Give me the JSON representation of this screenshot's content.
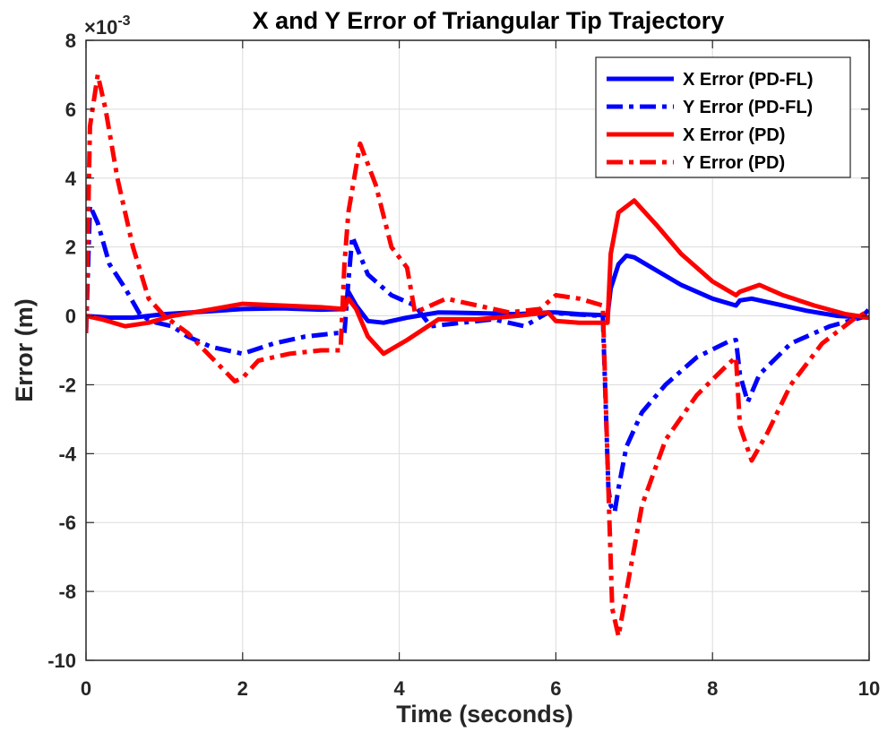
{
  "chart_data": {
    "type": "line",
    "title": "X and Y Error of Triangular Tip Trajectory",
    "xlabel": "Time (seconds)",
    "ylabel": "Error (m)",
    "y_multiplier": "×10",
    "y_exponent": "-3",
    "xlim": [
      0,
      10
    ],
    "ylim": [
      -10,
      8
    ],
    "xticks": [
      "0",
      "2",
      "4",
      "6",
      "8",
      "10"
    ],
    "yticks": [
      "-10",
      "-8",
      "-6",
      "-4",
      "-2",
      "0",
      "2",
      "4",
      "6",
      "8"
    ],
    "grid": true,
    "legend_position": "top-right",
    "series": [
      {
        "name": "X Error (PD-FL)",
        "color": "#0000ff",
        "style": "solid",
        "x": [
          0,
          0.3,
          0.6,
          1.0,
          1.5,
          2.0,
          2.5,
          3.0,
          3.3,
          3.35,
          3.45,
          3.6,
          3.8,
          4.1,
          4.5,
          5.0,
          5.5,
          5.9,
          6.0,
          6.3,
          6.6,
          6.66,
          6.7,
          6.8,
          6.9,
          7.0,
          7.3,
          7.6,
          8.0,
          8.3,
          8.35,
          8.5,
          8.8,
          9.2,
          9.6,
          10.0
        ],
        "y": [
          0.0,
          -0.05,
          -0.05,
          0.05,
          0.12,
          0.2,
          0.22,
          0.18,
          0.2,
          0.7,
          0.3,
          -0.15,
          -0.2,
          -0.05,
          0.1,
          0.08,
          0.05,
          0.1,
          0.1,
          0.05,
          0.02,
          0.02,
          0.8,
          1.5,
          1.75,
          1.7,
          1.3,
          0.9,
          0.5,
          0.3,
          0.45,
          0.5,
          0.35,
          0.15,
          0.0,
          -0.05
        ]
      },
      {
        "name": "Y Error (PD-FL)",
        "color": "#0000ff",
        "style": "dashdot",
        "x": [
          0,
          0.05,
          0.15,
          0.3,
          0.5,
          0.7,
          0.9,
          1.1,
          1.3,
          1.6,
          2.0,
          2.4,
          2.8,
          3.2,
          3.3,
          3.35,
          3.4,
          3.6,
          3.9,
          4.2,
          4.4,
          4.8,
          5.2,
          5.6,
          5.9,
          6.2,
          6.6,
          6.67,
          6.7,
          6.75,
          6.8,
          6.9,
          7.1,
          7.4,
          7.8,
          8.2,
          8.3,
          8.35,
          8.45,
          8.6,
          9.0,
          9.5,
          9.9,
          10.0
        ],
        "y": [
          -0.5,
          3.2,
          2.7,
          1.5,
          0.8,
          0.0,
          -0.2,
          -0.3,
          -0.6,
          -0.9,
          -1.1,
          -0.8,
          -0.6,
          -0.5,
          -0.5,
          1.0,
          2.3,
          1.2,
          0.6,
          0.3,
          -0.3,
          -0.2,
          -0.1,
          -0.3,
          0.1,
          0.05,
          0.0,
          -5.0,
          -5.5,
          -5.7,
          -5.0,
          -3.8,
          -2.8,
          -2.0,
          -1.2,
          -0.75,
          -0.7,
          -1.7,
          -2.5,
          -1.7,
          -0.8,
          -0.3,
          -0.05,
          0.2
        ]
      },
      {
        "name": "X Error (PD)",
        "color": "#ff0000",
        "style": "solid",
        "x": [
          0,
          0.2,
          0.5,
          0.8,
          1.1,
          1.5,
          2.0,
          2.5,
          3.0,
          3.3,
          3.35,
          3.45,
          3.6,
          3.8,
          4.1,
          4.5,
          5.0,
          5.5,
          5.9,
          6.0,
          6.3,
          6.6,
          6.66,
          6.7,
          6.8,
          7.0,
          7.3,
          7.6,
          8.0,
          8.3,
          8.35,
          8.6,
          8.9,
          9.3,
          9.7,
          10.0
        ],
        "y": [
          0.0,
          -0.1,
          -0.3,
          -0.2,
          0.0,
          0.15,
          0.35,
          0.3,
          0.25,
          0.2,
          0.5,
          0.2,
          -0.6,
          -1.1,
          -0.7,
          -0.1,
          -0.1,
          0.0,
          0.1,
          -0.15,
          -0.2,
          -0.2,
          -0.2,
          1.8,
          3.0,
          3.35,
          2.6,
          1.8,
          1.0,
          0.6,
          0.7,
          0.9,
          0.6,
          0.3,
          0.05,
          -0.05
        ]
      },
      {
        "name": "Y Error (PD)",
        "color": "#ff0000",
        "style": "dashdot",
        "x": [
          0,
          0.05,
          0.15,
          0.25,
          0.4,
          0.6,
          0.8,
          1.0,
          1.3,
          1.6,
          1.9,
          2.0,
          2.2,
          2.6,
          3.0,
          3.25,
          3.3,
          3.35,
          3.5,
          3.7,
          3.9,
          4.1,
          4.2,
          4.3,
          4.6,
          5.0,
          5.4,
          5.8,
          6.0,
          6.3,
          6.6,
          6.67,
          6.72,
          6.8,
          6.9,
          7.1,
          7.4,
          7.8,
          8.2,
          8.3,
          8.35,
          8.5,
          8.7,
          9.0,
          9.4,
          9.8,
          10.0
        ],
        "y": [
          -0.5,
          5.5,
          7.0,
          6.0,
          4.0,
          2.0,
          0.5,
          0.0,
          -0.5,
          -1.2,
          -1.9,
          -1.8,
          -1.3,
          -1.1,
          -1.0,
          -1.0,
          1.5,
          3.0,
          5.0,
          3.8,
          2.0,
          1.4,
          0.1,
          0.2,
          0.5,
          0.3,
          0.1,
          0.2,
          0.6,
          0.5,
          0.3,
          -5.0,
          -8.5,
          -9.3,
          -8.0,
          -5.5,
          -3.6,
          -2.3,
          -1.4,
          -1.2,
          -3.2,
          -4.2,
          -3.4,
          -2.0,
          -0.8,
          -0.1,
          0.15
        ]
      }
    ]
  }
}
